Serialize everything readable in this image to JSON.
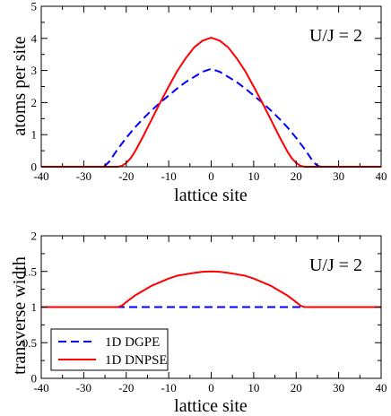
{
  "chart_data": [
    {
      "type": "line",
      "ylabel": "atoms per site",
      "xlabel": "lattice site",
      "xlim": [
        -40,
        40
      ],
      "ylim": [
        0,
        5
      ],
      "xticks": [
        -40,
        -30,
        -20,
        -10,
        0,
        10,
        20,
        30,
        40
      ],
      "yticks": [
        0,
        1,
        2,
        3,
        4,
        5
      ],
      "annotation": "U/J = 2",
      "series": [
        {
          "name": "1D DGPE",
          "color": "#0000ff",
          "style": "dashed",
          "x": [
            -40,
            -30,
            -26,
            -25,
            -24,
            -22,
            -20,
            -18,
            -16,
            -14,
            -12,
            -10,
            -8,
            -6,
            -4,
            -2,
            0,
            2,
            4,
            6,
            8,
            10,
            12,
            14,
            16,
            18,
            20,
            22,
            24,
            25,
            26,
            30,
            40
          ],
          "y": [
            0,
            0,
            0,
            0.03,
            0.16,
            0.55,
            0.9,
            1.22,
            1.5,
            1.76,
            2.0,
            2.22,
            2.44,
            2.64,
            2.8,
            2.96,
            3.05,
            2.96,
            2.8,
            2.64,
            2.44,
            2.22,
            2.0,
            1.76,
            1.5,
            1.22,
            0.9,
            0.55,
            0.16,
            0.03,
            0,
            0,
            0
          ]
        },
        {
          "name": "1D DNPSE",
          "color": "#ff0000",
          "style": "solid",
          "x": [
            -40,
            -30,
            -22,
            -21,
            -20,
            -19,
            -18,
            -16,
            -14,
            -12,
            -10,
            -8,
            -6,
            -4,
            -2,
            0,
            2,
            4,
            6,
            8,
            10,
            12,
            14,
            16,
            18,
            19,
            20,
            21,
            22,
            30,
            40
          ],
          "y": [
            0,
            0,
            0,
            0.03,
            0.12,
            0.26,
            0.46,
            0.95,
            1.48,
            2.0,
            2.5,
            2.98,
            3.38,
            3.72,
            3.93,
            4.02,
            3.93,
            3.72,
            3.38,
            2.98,
            2.5,
            2.0,
            1.48,
            0.95,
            0.46,
            0.26,
            0.12,
            0.03,
            0,
            0,
            0
          ]
        }
      ]
    },
    {
      "type": "line",
      "ylabel": "transverse width",
      "xlabel": "lattice site",
      "xlim": [
        -40,
        40
      ],
      "ylim": [
        0,
        2
      ],
      "xticks": [
        -40,
        -30,
        -20,
        -10,
        0,
        10,
        20,
        30,
        40
      ],
      "yticks": [
        0,
        0.5,
        1,
        1.5,
        2
      ],
      "annotation": "U/J = 2",
      "legend_position": "bottom-left",
      "series": [
        {
          "name": "1D DGPE",
          "color": "#0000ff",
          "style": "dashed",
          "x": [
            -40,
            40
          ],
          "y": [
            1,
            1
          ]
        },
        {
          "name": "1D DNPSE",
          "color": "#ff0000",
          "style": "solid",
          "x": [
            -40,
            -22,
            -21,
            -20,
            -18,
            -16,
            -14,
            -12,
            -10,
            -8,
            -6,
            -4,
            -2,
            0,
            2,
            4,
            6,
            8,
            10,
            12,
            14,
            16,
            18,
            20,
            21,
            22,
            40
          ],
          "y": [
            1,
            1,
            1.02,
            1.07,
            1.16,
            1.23,
            1.3,
            1.35,
            1.4,
            1.44,
            1.46,
            1.48,
            1.495,
            1.5,
            1.495,
            1.48,
            1.46,
            1.44,
            1.4,
            1.35,
            1.3,
            1.23,
            1.16,
            1.07,
            1.02,
            1,
            1
          ]
        }
      ]
    }
  ]
}
